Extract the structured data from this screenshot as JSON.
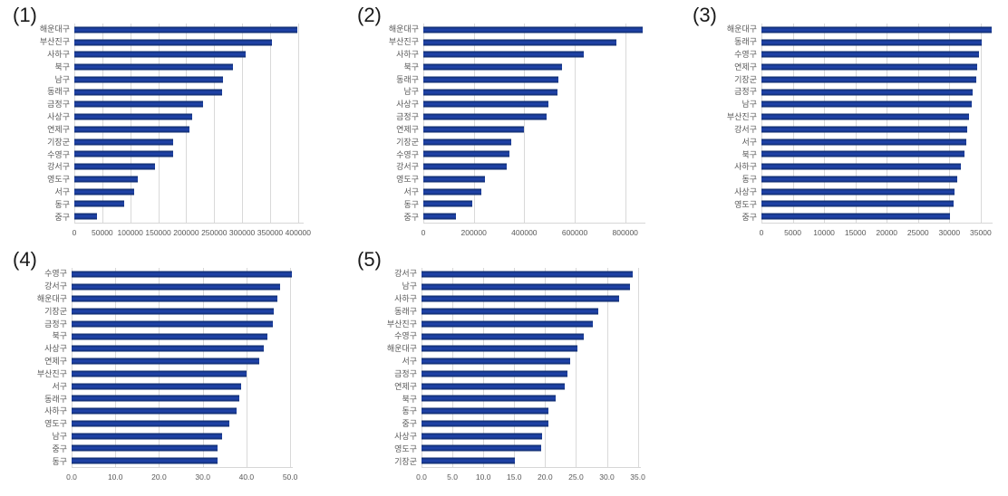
{
  "colors": {
    "background": "#ffffff",
    "bar_core": "#1e41a5",
    "bar_edge": "#0e2a66",
    "grid": "#d9d9d9",
    "axis_text": "#595959",
    "panel_label_text": "#1a1a1a"
  },
  "chart_data": [
    {
      "panel_label": "(1)",
      "type": "bar",
      "orientation": "horizontal",
      "grid": true,
      "categories": [
        "해운대구",
        "부산진구",
        "사하구",
        "북구",
        "남구",
        "동래구",
        "금정구",
        "사상구",
        "연제구",
        "기장군",
        "수영구",
        "강서구",
        "영도구",
        "서구",
        "동구",
        "중구"
      ],
      "values": [
        398000,
        353000,
        307000,
        283000,
        266000,
        264000,
        230000,
        211000,
        205000,
        177000,
        176000,
        145000,
        113000,
        107000,
        89000,
        41000
      ],
      "tick_values": [
        0,
        50000,
        100000,
        150000,
        200000,
        250000,
        300000,
        350000,
        400000
      ],
      "tick_labels": [
        "0",
        "50000",
        "100000",
        "150000",
        "200000",
        "250000",
        "300000",
        "350000",
        "400000"
      ],
      "xlim": [
        0,
        410000
      ]
    },
    {
      "panel_label": "(2)",
      "type": "bar",
      "orientation": "horizontal",
      "grid": true,
      "categories": [
        "해운대구",
        "부산진구",
        "사하구",
        "북구",
        "동래구",
        "남구",
        "사상구",
        "금정구",
        "연제구",
        "기장군",
        "수영구",
        "강서구",
        "영도구",
        "서구",
        "동구",
        "중구"
      ],
      "values": [
        868000,
        766000,
        635000,
        551000,
        535000,
        533000,
        497000,
        487000,
        400000,
        347000,
        340000,
        330000,
        245000,
        230000,
        193000,
        128000
      ],
      "tick_values": [
        0,
        200000,
        400000,
        600000,
        800000
      ],
      "tick_labels": [
        "0",
        "200000",
        "400000",
        "600000",
        "800000"
      ],
      "xlim": [
        0,
        880000
      ]
    },
    {
      "panel_label": "(3)",
      "type": "bar",
      "orientation": "horizontal",
      "grid": true,
      "categories": [
        "해운대구",
        "동래구",
        "수영구",
        "연제구",
        "기장군",
        "금정구",
        "남구",
        "부산진구",
        "강서구",
        "서구",
        "북구",
        "사하구",
        "동구",
        "사상구",
        "영도구",
        "중구"
      ],
      "values": [
        36800,
        35100,
        34800,
        34400,
        34300,
        33700,
        33600,
        33200,
        32900,
        32700,
        32400,
        31800,
        31200,
        30800,
        30700,
        30100
      ],
      "tick_values": [
        0,
        5000,
        10000,
        15000,
        20000,
        25000,
        30000,
        35000
      ],
      "tick_labels": [
        "0",
        "5000",
        "10000",
        "15000",
        "20000",
        "25000",
        "30000",
        "35000"
      ],
      "xlim": [
        0,
        36900
      ]
    },
    {
      "panel_label": "(4)",
      "type": "bar",
      "orientation": "horizontal",
      "grid": true,
      "categories": [
        "수영구",
        "강서구",
        "해운대구",
        "기장군",
        "금정구",
        "북구",
        "사상구",
        "연제구",
        "부산진구",
        "서구",
        "동래구",
        "사하구",
        "영도구",
        "남구",
        "중구",
        "동구"
      ],
      "values": [
        50.3,
        47.8,
        47.0,
        46.2,
        46.0,
        44.8,
        44.0,
        43.0,
        40.0,
        38.8,
        38.3,
        37.7,
        36.0,
        34.5,
        33.4,
        33.3
      ],
      "tick_values": [
        0,
        10,
        20,
        30,
        40,
        50
      ],
      "tick_labels": [
        "0.0",
        "10.0",
        "20.0",
        "30.0",
        "40.0",
        "50.0"
      ],
      "xlim": [
        0,
        50.6
      ]
    },
    {
      "panel_label": "(5)",
      "type": "bar",
      "orientation": "horizontal",
      "grid": true,
      "categories": [
        "강서구",
        "남구",
        "사하구",
        "동래구",
        "부산진구",
        "수영구",
        "해운대구",
        "서구",
        "금정구",
        "연제구",
        "북구",
        "동구",
        "중구",
        "사상구",
        "영도구",
        "기장군"
      ],
      "values": [
        34.2,
        33.7,
        32.0,
        28.6,
        27.7,
        26.3,
        25.3,
        24.0,
        23.6,
        23.2,
        21.7,
        20.6,
        20.5,
        19.5,
        19.4,
        15.1
      ],
      "tick_values": [
        0,
        5,
        10,
        15,
        20,
        25,
        30,
        35
      ],
      "tick_labels": [
        "0.0",
        "5.0",
        "10.0",
        "15.0",
        "20.0",
        "25.0",
        "30.0",
        "35.0"
      ],
      "xlim": [
        0,
        35.5
      ]
    }
  ]
}
